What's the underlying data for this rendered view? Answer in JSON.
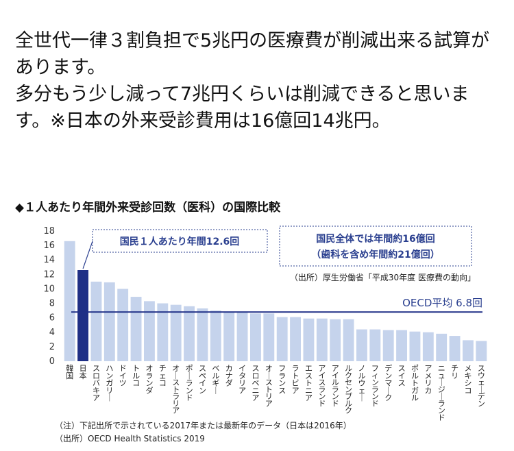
{
  "post": {
    "paragraph1": "全世代一律３割負担で5兆円の医療費が削減出来る試算があります。",
    "paragraph2": "多分もう少し減って7兆円くらいは削減できると思います。※日本の外来受診費用は16億回14兆円。"
  },
  "chart_title": "◆１人あたり年間外来受診回数（医科）の国際比較",
  "annotations": {
    "per_person": "国民１人あたり年間12.6回",
    "total_line1": "国民全体では年間約16億回",
    "total_line2": "（歯科を含め年間約21億回）",
    "source_note": "（出所）厚生労働省「平成30年度 医療費の動向」",
    "oecd_label": "OECD平均 6.8回"
  },
  "footnotes": {
    "note": "（注）下記出所で示されている2017年または最新年のデータ（日本は2016年）",
    "source": "（出所）OECD Health Statistics 2019"
  },
  "colors": {
    "bar": "#c5d3ec",
    "highlight": "#1f2f86",
    "average_line": "#1f2f86",
    "annotation_border": "#2a3f8f"
  },
  "chart_data": {
    "type": "bar",
    "categories": [
      "韓国",
      "日本",
      "スロバキア",
      "ハンガリー",
      "ドイツ",
      "トルコ",
      "オランダ",
      "チェコ",
      "オーストラリア",
      "ポーランド",
      "スペイン",
      "ベルギー",
      "カナダ",
      "イタリア",
      "スロベニア",
      "オーストリア",
      "フランス",
      "ラトビア",
      "エストニア",
      "アイスランド",
      "アイルランド",
      "ルクセンブルク",
      "ノルウェー",
      "フィンランド",
      "デンマーク",
      "スイス",
      "ポルトガル",
      "アメリカ",
      "ニュージーランド",
      "チリ",
      "メキシコ",
      "スウェーデン"
    ],
    "values": [
      16.6,
      12.6,
      11.0,
      10.9,
      10.0,
      8.9,
      8.3,
      8.0,
      7.8,
      7.6,
      7.3,
      7.0,
      6.8,
      6.8,
      6.6,
      6.6,
      6.1,
      6.1,
      5.9,
      5.9,
      5.8,
      5.8,
      4.4,
      4.4,
      4.3,
      4.3,
      4.1,
      4.0,
      3.8,
      3.5,
      2.9,
      2.8
    ],
    "highlight_index": 1,
    "average": 6.8,
    "ylim": [
      0,
      18
    ],
    "yticks": [
      0,
      2,
      4,
      6,
      8,
      10,
      12,
      14,
      16,
      18
    ],
    "grid": false,
    "title": "◆１人あたり年間外来受診回数（医科）の国際比較"
  }
}
